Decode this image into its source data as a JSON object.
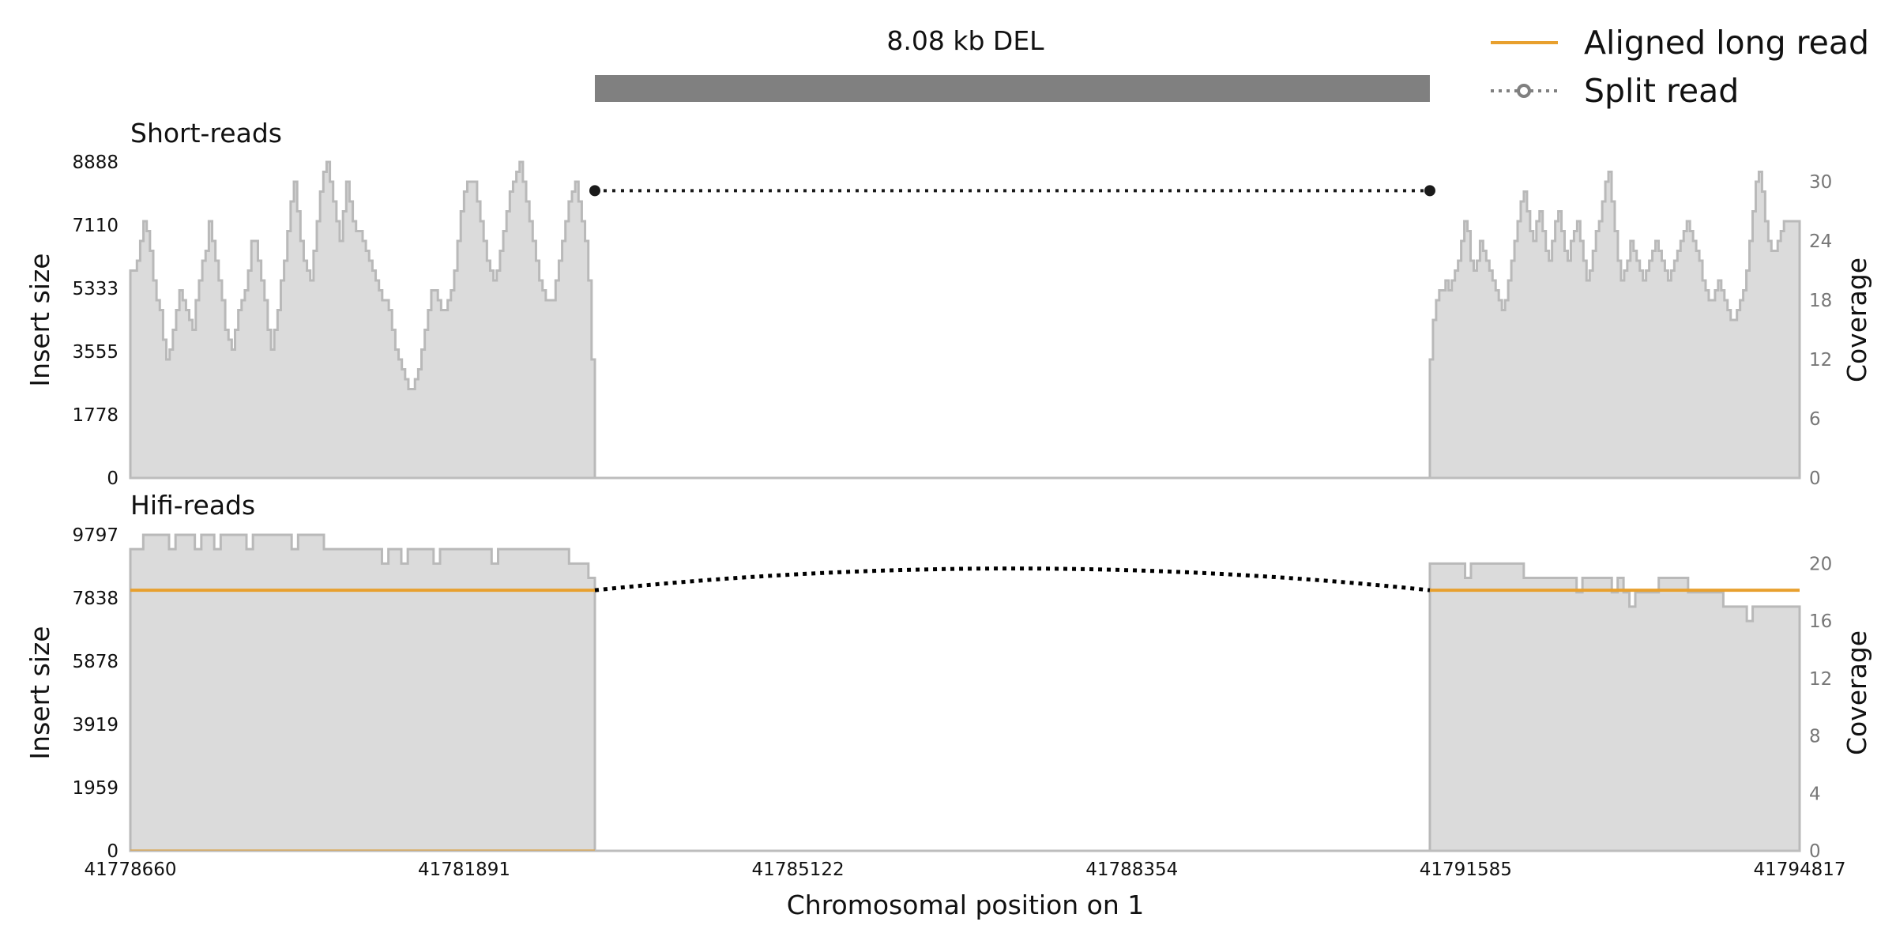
{
  "colors": {
    "coverage_fill": "#dbdbdb",
    "coverage_line": "#b9b9b9",
    "sv_bar": "#808080",
    "split_read": "#1a1a1a",
    "long_read": "#e8a02e",
    "axis": "#bdbdbd"
  },
  "legend": {
    "items": [
      {
        "label": "Aligned long read",
        "icon": "solid-line-icon"
      },
      {
        "label": "Split read",
        "icon": "dotted-line-circle-icon"
      }
    ],
    "placement": "top-right"
  },
  "sv": {
    "label": "8.08 kb DEL",
    "start": 41783156,
    "end": 41791238
  },
  "chart_data": {
    "type": "area",
    "xlabel": "Chromosomal position on 1",
    "xlim": [
      41778660,
      41794817
    ],
    "x_ticks": [
      "41778660",
      "41781891",
      "41785122",
      "41788354",
      "41791585",
      "41794817"
    ],
    "panels": [
      {
        "title": "Short-reads",
        "ylabel_left": "Insert size",
        "ylabel_right": "Coverage",
        "y_ticks_left": [
          "0",
          "1778",
          "3555",
          "5333",
          "7110",
          "8888"
        ],
        "y_ticks_right": [
          "0",
          "6",
          "12",
          "18",
          "24",
          "30"
        ],
        "ylim_left": [
          0,
          8888
        ],
        "ylim_right": [
          0,
          32
        ],
        "coverage": {
          "left_range": [
            41778660,
            41783156
          ],
          "right_range": [
            41791238,
            41794817
          ],
          "left_values": [
            21,
            21,
            22,
            24,
            26,
            25,
            23,
            20,
            18,
            17,
            14,
            12,
            13,
            15,
            17,
            19,
            18,
            17,
            16,
            15,
            18,
            20,
            22,
            23,
            26,
            24,
            22,
            20,
            18,
            15,
            14,
            13,
            15,
            17,
            18,
            19,
            21,
            24,
            24,
            22,
            20,
            18,
            15,
            13,
            15,
            17,
            20,
            22,
            25,
            28,
            30,
            27,
            24,
            22,
            21,
            20,
            23,
            26,
            29,
            31,
            32,
            30,
            28,
            26,
            24,
            27,
            30,
            28,
            26,
            25,
            25,
            24,
            23,
            22,
            21,
            20,
            19,
            18,
            18,
            17,
            15,
            13,
            12,
            11,
            10,
            9,
            9,
            10,
            11,
            13,
            15,
            17,
            19,
            19,
            18,
            17,
            17,
            18,
            19,
            21,
            24,
            27,
            29,
            30,
            30,
            30,
            28,
            26,
            24,
            22,
            21,
            20,
            21,
            23,
            25,
            27,
            29,
            30,
            31,
            32,
            30,
            28,
            26,
            24,
            22,
            20,
            19,
            18,
            18,
            18,
            20,
            22,
            24,
            26,
            28,
            29,
            30,
            28,
            26,
            24,
            20,
            12
          ],
          "right_values": [
            12,
            16,
            18,
            19,
            19,
            20,
            19,
            20,
            21,
            22,
            24,
            26,
            25,
            22,
            21,
            22,
            24,
            23,
            22,
            21,
            20,
            19,
            18,
            17,
            18,
            20,
            22,
            24,
            26,
            28,
            29,
            27,
            25,
            24,
            26,
            27,
            25,
            23,
            22,
            24,
            26,
            27,
            25,
            23,
            22,
            24,
            25,
            26,
            24,
            22,
            20,
            21,
            23,
            25,
            26,
            28,
            30,
            31,
            28,
            25,
            22,
            20,
            21,
            22,
            24,
            23,
            22,
            21,
            20,
            21,
            22,
            23,
            24,
            23,
            22,
            21,
            20,
            21,
            22,
            23,
            24,
            25,
            26,
            25,
            24,
            23,
            22,
            20,
            19,
            18,
            18,
            19,
            20,
            19,
            18,
            17,
            16,
            16,
            17,
            18,
            19,
            21,
            24,
            27,
            30,
            31,
            29,
            26,
            24,
            23,
            23,
            24,
            25,
            26,
            26,
            26,
            26,
            26
          ]
        },
        "split_reads": [
          {
            "start": 41783156,
            "end": 41791238,
            "insert_size": 8080
          }
        ]
      },
      {
        "title": "Hifi-reads",
        "ylabel_left": "Insert size",
        "ylabel_right": "Coverage",
        "y_ticks_left": [
          "0",
          "1959",
          "3919",
          "5878",
          "7838",
          "9797"
        ],
        "y_ticks_right": [
          "0",
          "4",
          "8",
          "12",
          "16",
          "20"
        ],
        "ylim_left": [
          0,
          9797
        ],
        "ylim_right": [
          0,
          22
        ],
        "coverage": {
          "left_range": [
            41778660,
            41783156
          ],
          "right_range": [
            41791238,
            41794817
          ],
          "left_values": [
            21,
            21,
            22,
            22,
            22,
            22,
            21,
            22,
            22,
            22,
            21,
            22,
            22,
            21,
            22,
            22,
            22,
            22,
            21,
            22,
            22,
            22,
            22,
            22,
            22,
            21,
            22,
            22,
            22,
            22,
            21,
            21,
            21,
            21,
            21,
            21,
            21,
            21,
            21,
            20,
            21,
            21,
            20,
            21,
            21,
            21,
            21,
            20,
            21,
            21,
            21,
            21,
            21,
            21,
            21,
            21,
            20,
            21,
            21,
            21,
            21,
            21,
            21,
            21,
            21,
            21,
            21,
            21,
            20,
            20,
            20,
            19
          ],
          "right_values": [
            20,
            20,
            20,
            20,
            20,
            20,
            19,
            20,
            20,
            20,
            20,
            20,
            20,
            20,
            20,
            20,
            19,
            19,
            19,
            19,
            19,
            19,
            19,
            19,
            19,
            18,
            19,
            19,
            19,
            19,
            19,
            18,
            19,
            18,
            17,
            18,
            18,
            18,
            18,
            19,
            19,
            19,
            19,
            19,
            18,
            18,
            18,
            18,
            18,
            18,
            17,
            17,
            17,
            17,
            16,
            17,
            17,
            17,
            17,
            17,
            17,
            17,
            17
          ]
        },
        "long_read": {
          "insert_size": 8080,
          "left_range": [
            41778660,
            41783156
          ],
          "right_range": [
            41791238,
            41794817
          ]
        },
        "split_reads": [
          {
            "start": 41783156,
            "end": 41791238,
            "insert_size": 8080
          }
        ]
      }
    ]
  }
}
